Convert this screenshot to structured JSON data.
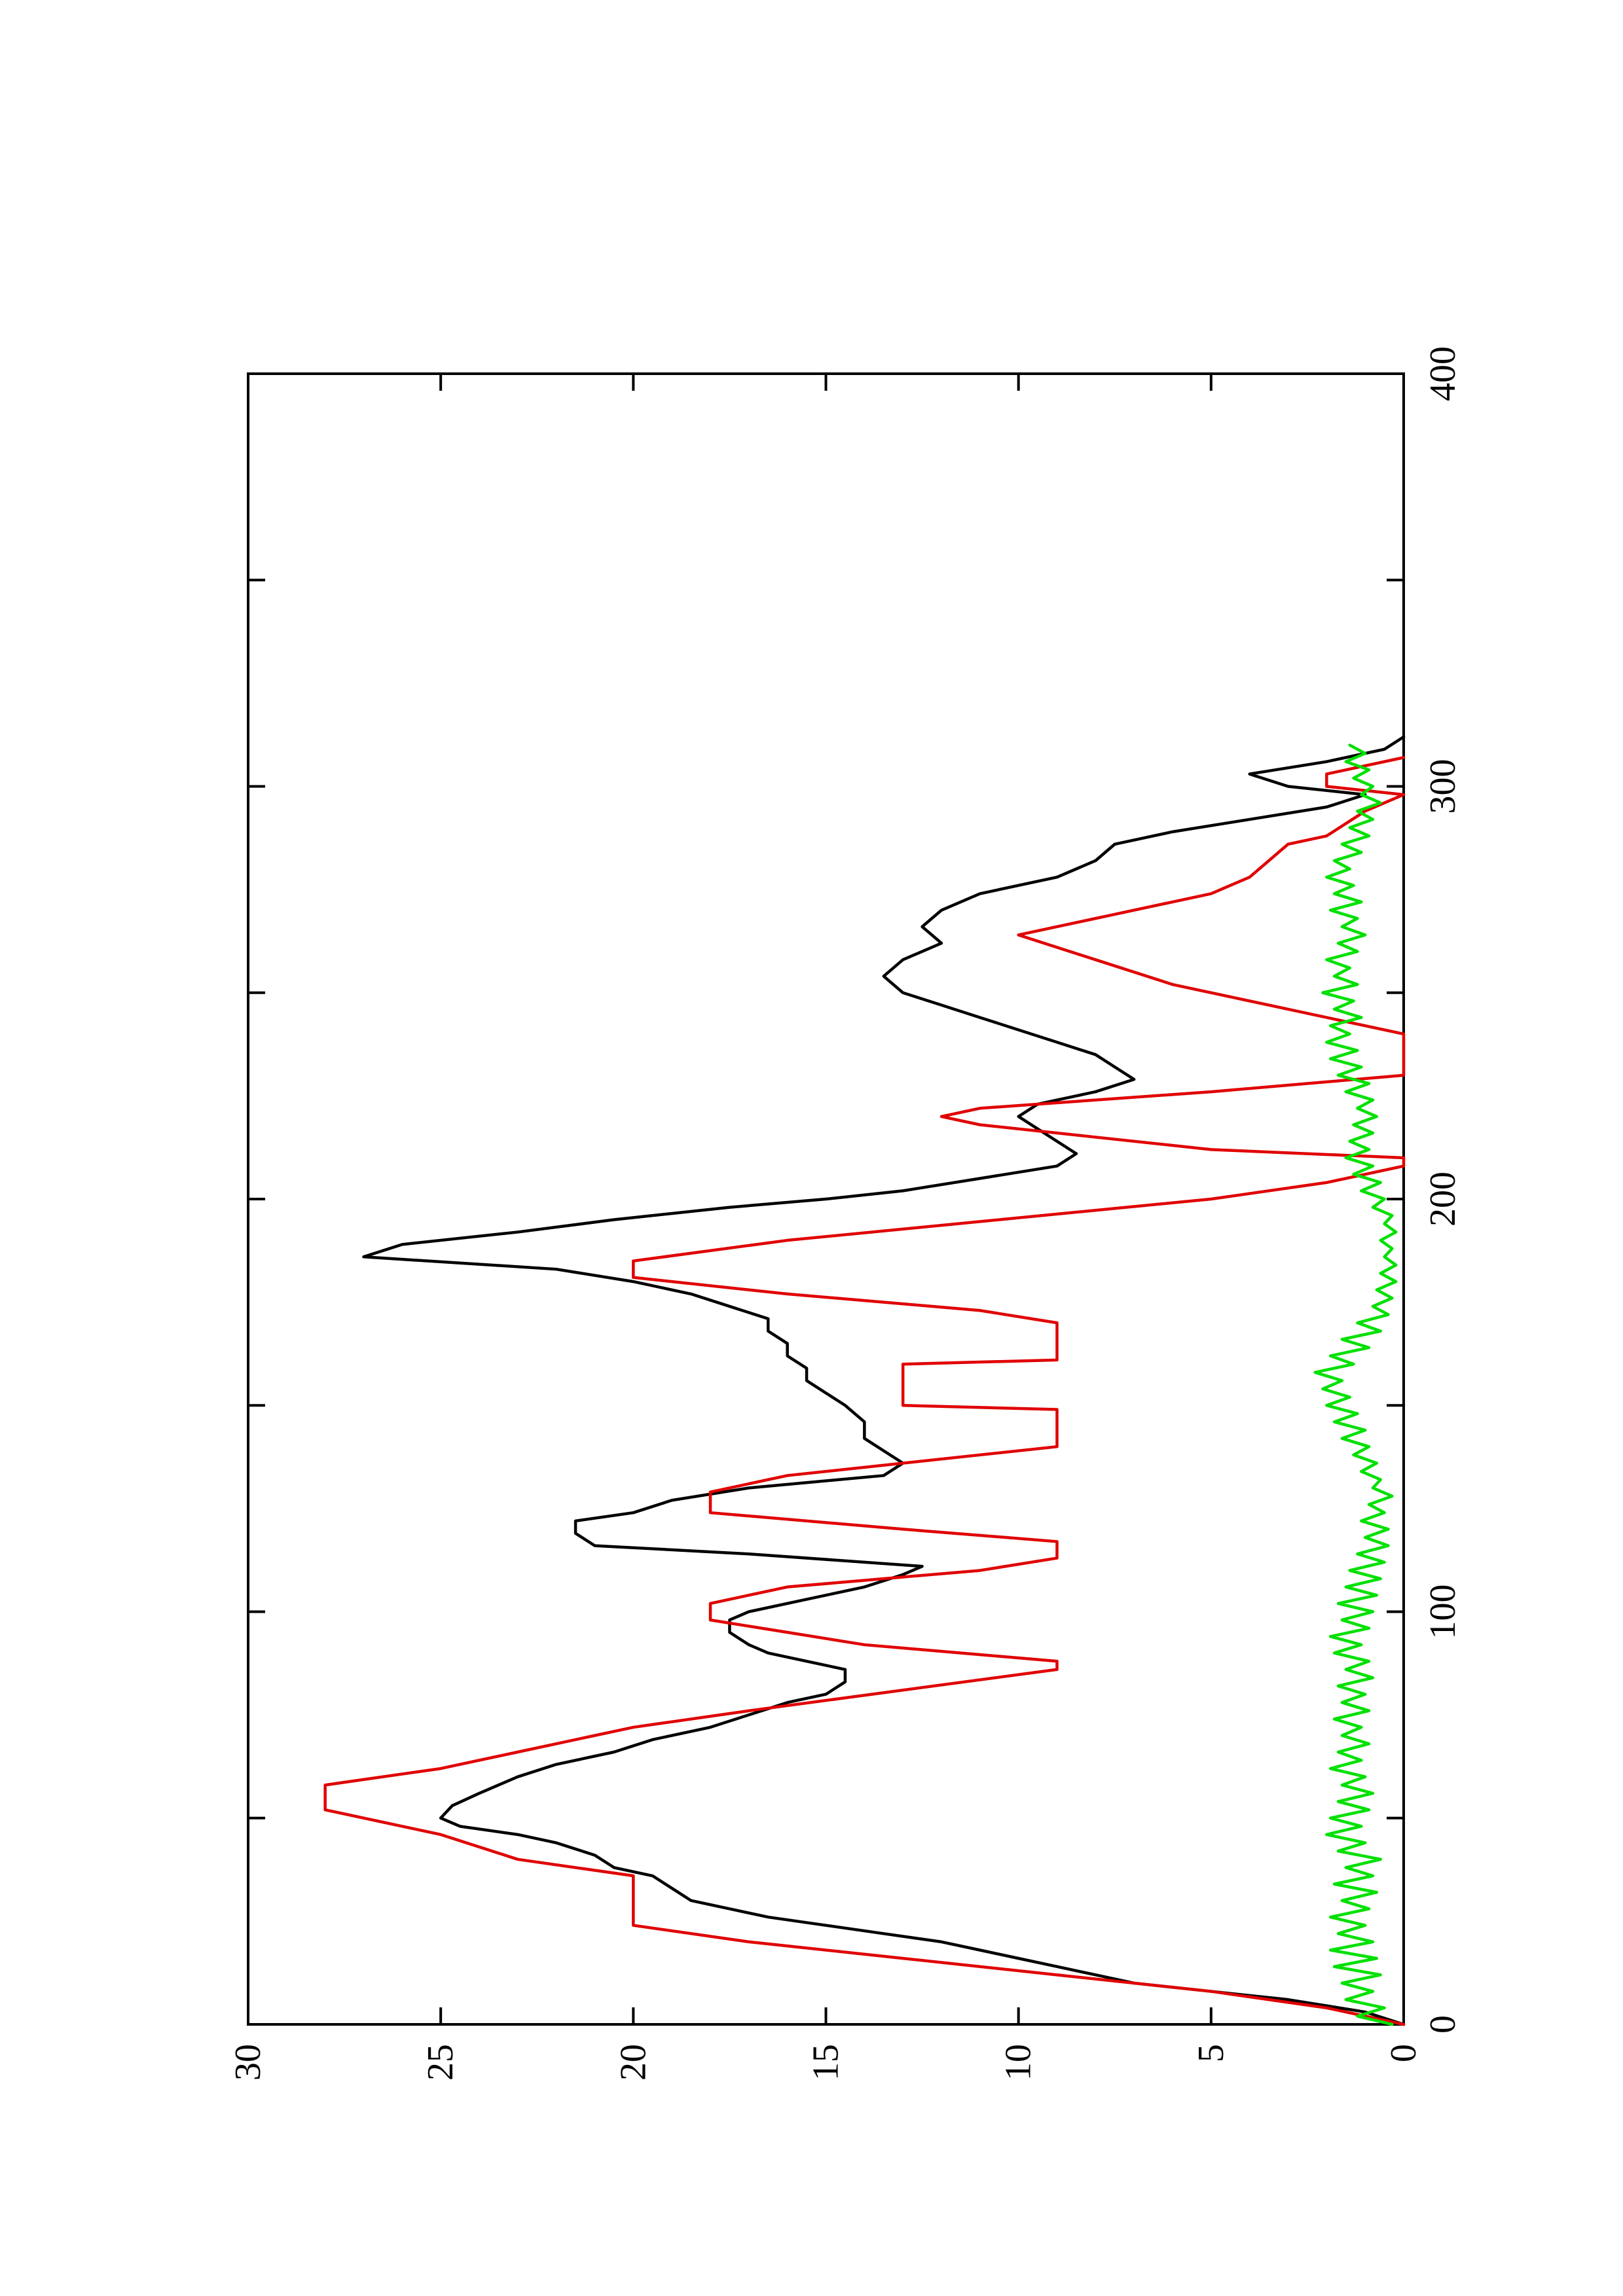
{
  "chart_data": {
    "type": "line",
    "orientation": "rotated-90-clockwise",
    "title": "",
    "xlabel": "",
    "ylabel": "",
    "xlim": [
      0,
      400
    ],
    "ylim": [
      0,
      30
    ],
    "x_ticks": [
      0,
      100,
      200,
      300,
      400
    ],
    "x_minor_ticks": [
      50,
      150,
      250,
      350
    ],
    "y_ticks": [
      0,
      5,
      10,
      15,
      20,
      25,
      30
    ],
    "x_tick_labels": [
      "0",
      "100",
      "200",
      "300",
      "400"
    ],
    "y_tick_labels": [
      "0",
      "5",
      "10",
      "15",
      "20",
      "25",
      "30"
    ],
    "grid": false,
    "legend": "none",
    "series": [
      {
        "color": "#000000",
        "points": [
          [
            0,
            0
          ],
          [
            3,
            1
          ],
          [
            6,
            3
          ],
          [
            8,
            5
          ],
          [
            10,
            7
          ],
          [
            12,
            8
          ],
          [
            14,
            9
          ],
          [
            16,
            10
          ],
          [
            18,
            11
          ],
          [
            20,
            12
          ],
          [
            22,
            13.5
          ],
          [
            24,
            15
          ],
          [
            26,
            16.5
          ],
          [
            28,
            17.5
          ],
          [
            30,
            18.5
          ],
          [
            33,
            19
          ],
          [
            36,
            19.5
          ],
          [
            38,
            20.5
          ],
          [
            41,
            21
          ],
          [
            44,
            22
          ],
          [
            46,
            23
          ],
          [
            48,
            24.5
          ],
          [
            50,
            25
          ],
          [
            53,
            24.7
          ],
          [
            56,
            24
          ],
          [
            60,
            23
          ],
          [
            63,
            22
          ],
          [
            66,
            20.5
          ],
          [
            69,
            19.5
          ],
          [
            72,
            18
          ],
          [
            75,
            17
          ],
          [
            78,
            16
          ],
          [
            80,
            15
          ],
          [
            83,
            14.5
          ],
          [
            86,
            14.5
          ],
          [
            88,
            15.5
          ],
          [
            90,
            16.5
          ],
          [
            92,
            17
          ],
          [
            95,
            17.5
          ],
          [
            98,
            17.5
          ],
          [
            100,
            17
          ],
          [
            103,
            15.5
          ],
          [
            106,
            14
          ],
          [
            109,
            13
          ],
          [
            111,
            12.5
          ],
          [
            114,
            17
          ],
          [
            116,
            21
          ],
          [
            119,
            21.5
          ],
          [
            122,
            21.5
          ],
          [
            124,
            20
          ],
          [
            127,
            19
          ],
          [
            130,
            17
          ],
          [
            133,
            13.5
          ],
          [
            136,
            13
          ],
          [
            139,
            13.5
          ],
          [
            142,
            14
          ],
          [
            146,
            14
          ],
          [
            150,
            14.5
          ],
          [
            153,
            15
          ],
          [
            156,
            15.5
          ],
          [
            159,
            15.5
          ],
          [
            162,
            16
          ],
          [
            165,
            16
          ],
          [
            168,
            16.5
          ],
          [
            171,
            16.5
          ],
          [
            174,
            17.5
          ],
          [
            177,
            18.5
          ],
          [
            180,
            20
          ],
          [
            183,
            22
          ],
          [
            186,
            27
          ],
          [
            189,
            26
          ],
          [
            192,
            23
          ],
          [
            195,
            20.5
          ],
          [
            198,
            17.5
          ],
          [
            200,
            15
          ],
          [
            202,
            13
          ],
          [
            205,
            11
          ],
          [
            208,
            9
          ],
          [
            211,
            8.5
          ],
          [
            214,
            9
          ],
          [
            217,
            9.5
          ],
          [
            220,
            10
          ],
          [
            223,
            9.5
          ],
          [
            226,
            8
          ],
          [
            229,
            7
          ],
          [
            232,
            7.5
          ],
          [
            235,
            8
          ],
          [
            238,
            9
          ],
          [
            241,
            10
          ],
          [
            244,
            11
          ],
          [
            247,
            12
          ],
          [
            250,
            13
          ],
          [
            254,
            13.5
          ],
          [
            258,
            13
          ],
          [
            262,
            12
          ],
          [
            266,
            12.5
          ],
          [
            270,
            12
          ],
          [
            274,
            11
          ],
          [
            278,
            9
          ],
          [
            282,
            8
          ],
          [
            286,
            7.5
          ],
          [
            289,
            6
          ],
          [
            292,
            4
          ],
          [
            295,
            2
          ],
          [
            298,
            1
          ],
          [
            300,
            3
          ],
          [
            303,
            4
          ],
          [
            306,
            2
          ],
          [
            309,
            0.5
          ],
          [
            312,
            0
          ]
        ]
      },
      {
        "color": "#e00000",
        "points": [
          [
            0,
            0
          ],
          [
            4,
            2
          ],
          [
            8,
            5
          ],
          [
            12,
            9
          ],
          [
            16,
            13
          ],
          [
            20,
            17
          ],
          [
            24,
            20
          ],
          [
            36,
            20
          ],
          [
            40,
            23
          ],
          [
            46,
            25
          ],
          [
            52,
            28
          ],
          [
            58,
            28
          ],
          [
            62,
            25
          ],
          [
            66,
            23
          ],
          [
            72,
            20
          ],
          [
            76,
            17
          ],
          [
            86,
            9
          ],
          [
            88,
            9
          ],
          [
            92,
            14
          ],
          [
            95,
            16
          ],
          [
            98,
            18
          ],
          [
            102,
            18
          ],
          [
            106,
            16
          ],
          [
            110,
            11
          ],
          [
            113,
            9
          ],
          [
            117,
            9
          ],
          [
            120,
            13
          ],
          [
            124,
            18
          ],
          [
            129,
            18
          ],
          [
            133,
            16
          ],
          [
            140,
            9
          ],
          [
            149,
            9
          ],
          [
            150,
            13
          ],
          [
            160,
            13
          ],
          [
            161,
            9
          ],
          [
            170,
            9
          ],
          [
            173,
            11
          ],
          [
            177,
            16
          ],
          [
            181,
            20
          ],
          [
            185,
            20
          ],
          [
            190,
            16
          ],
          [
            200,
            5
          ],
          [
            204,
            2
          ],
          [
            208,
            0
          ],
          [
            210,
            0
          ],
          [
            212,
            5
          ],
          [
            215,
            8
          ],
          [
            218,
            11
          ],
          [
            220,
            12
          ],
          [
            222,
            11
          ],
          [
            226,
            5
          ],
          [
            230,
            0
          ],
          [
            240,
            0
          ],
          [
            252,
            6
          ],
          [
            258,
            8
          ],
          [
            264,
            10
          ],
          [
            268,
            8
          ],
          [
            272,
            6
          ],
          [
            274,
            5
          ],
          [
            278,
            4
          ],
          [
            286,
            3
          ],
          [
            288,
            2
          ],
          [
            294,
            1
          ],
          [
            298,
            0
          ],
          [
            300,
            2
          ],
          [
            303,
            2
          ],
          [
            307,
            0
          ]
        ]
      },
      {
        "color": "#00e000",
        "points": [
          [
            0,
            0.3
          ],
          [
            2,
            1.2
          ],
          [
            4,
            0.5
          ],
          [
            6,
            1.5
          ],
          [
            8,
            0.8
          ],
          [
            10,
            1.6
          ],
          [
            12,
            0.6
          ],
          [
            14,
            1.8
          ],
          [
            16,
            0.7
          ],
          [
            18,
            1.9
          ],
          [
            20,
            0.8
          ],
          [
            22,
            1.7
          ],
          [
            24,
            1
          ],
          [
            26,
            1.9
          ],
          [
            28,
            0.9
          ],
          [
            30,
            1.6
          ],
          [
            32,
            0.7
          ],
          [
            34,
            1.8
          ],
          [
            36,
            0.8
          ],
          [
            38,
            1.5
          ],
          [
            40,
            0.6
          ],
          [
            42,
            1.7
          ],
          [
            44,
            1
          ],
          [
            46,
            2
          ],
          [
            48,
            1.1
          ],
          [
            50,
            1.9
          ],
          [
            52,
            0.9
          ],
          [
            54,
            1.7
          ],
          [
            56,
            0.8
          ],
          [
            58,
            1.6
          ],
          [
            60,
            1
          ],
          [
            62,
            1.9
          ],
          [
            64,
            1.1
          ],
          [
            66,
            1.7
          ],
          [
            68,
            0.9
          ],
          [
            70,
            1.6
          ],
          [
            72,
            1.1
          ],
          [
            74,
            1.8
          ],
          [
            76,
            0.9
          ],
          [
            78,
            1.6
          ],
          [
            80,
            1
          ],
          [
            82,
            1.7
          ],
          [
            84,
            0.8
          ],
          [
            86,
            1.5
          ],
          [
            88,
            0.9
          ],
          [
            90,
            1.8
          ],
          [
            92,
            1.1
          ],
          [
            94,
            1.9
          ],
          [
            96,
            0.9
          ],
          [
            98,
            1.6
          ],
          [
            100,
            0.8
          ],
          [
            102,
            1.7
          ],
          [
            104,
            0.7
          ],
          [
            106,
            1.5
          ],
          [
            108,
            0.6
          ],
          [
            110,
            1.4
          ],
          [
            112,
            0.5
          ],
          [
            114,
            1.2
          ],
          [
            116,
            0.4
          ],
          [
            118,
            1
          ],
          [
            120,
            0.4
          ],
          [
            122,
            1.1
          ],
          [
            124,
            0.5
          ],
          [
            126,
            0.9
          ],
          [
            128,
            0.3
          ],
          [
            130,
            0.8
          ],
          [
            132,
            0.6
          ],
          [
            134,
            1.1
          ],
          [
            136,
            0.7
          ],
          [
            138,
            1.3
          ],
          [
            140,
            0.9
          ],
          [
            142,
            1.6
          ],
          [
            144,
            1
          ],
          [
            146,
            1.8
          ],
          [
            148,
            1.2
          ],
          [
            150,
            2
          ],
          [
            152,
            1.4
          ],
          [
            154,
            2.1
          ],
          [
            156,
            1.6
          ],
          [
            158,
            2.3
          ],
          [
            160,
            1.3
          ],
          [
            162,
            1.9
          ],
          [
            164,
            0.9
          ],
          [
            166,
            1.6
          ],
          [
            168,
            0.6
          ],
          [
            170,
            1.2
          ],
          [
            172,
            0.4
          ],
          [
            174,
            0.8
          ],
          [
            176,
            0.3
          ],
          [
            178,
            0.7
          ],
          [
            180,
            0.2
          ],
          [
            182,
            0.6
          ],
          [
            184,
            0.2
          ],
          [
            186,
            0.5
          ],
          [
            188,
            0.3
          ],
          [
            190,
            0.6
          ],
          [
            192,
            0.2
          ],
          [
            194,
            0.5
          ],
          [
            196,
            0.3
          ],
          [
            198,
            0.8
          ],
          [
            200,
            0.5
          ],
          [
            202,
            1.1
          ],
          [
            204,
            0.6
          ],
          [
            206,
            1.3
          ],
          [
            208,
            0.8
          ],
          [
            210,
            1.5
          ],
          [
            212,
            0.9
          ],
          [
            214,
            1.4
          ],
          [
            216,
            0.8
          ],
          [
            218,
            1.3
          ],
          [
            220,
            0.7
          ],
          [
            222,
            1.2
          ],
          [
            224,
            0.8
          ],
          [
            226,
            1.5
          ],
          [
            228,
            0.9
          ],
          [
            230,
            1.7
          ],
          [
            232,
            1.1
          ],
          [
            234,
            1.9
          ],
          [
            236,
            1.2
          ],
          [
            238,
            2
          ],
          [
            240,
            1.4
          ],
          [
            242,
            1.9
          ],
          [
            244,
            1.1
          ],
          [
            246,
            1.8
          ],
          [
            248,
            1.3
          ],
          [
            250,
            2.1
          ],
          [
            252,
            1.2
          ],
          [
            254,
            1.8
          ],
          [
            256,
            1.4
          ],
          [
            258,
            2
          ],
          [
            260,
            1.2
          ],
          [
            262,
            1.7
          ],
          [
            264,
            1
          ],
          [
            266,
            1.6
          ],
          [
            268,
            1.2
          ],
          [
            270,
            1.9
          ],
          [
            272,
            1.1
          ],
          [
            274,
            1.8
          ],
          [
            276,
            1.3
          ],
          [
            278,
            2
          ],
          [
            280,
            1.4
          ],
          [
            282,
            1.8
          ],
          [
            284,
            1.1
          ],
          [
            286,
            1.6
          ],
          [
            288,
            0.9
          ],
          [
            290,
            1.4
          ],
          [
            292,
            0.8
          ],
          [
            294,
            1.2
          ],
          [
            296,
            0.6
          ],
          [
            298,
            1.1
          ],
          [
            300,
            0.8
          ],
          [
            302,
            1.3
          ],
          [
            304,
            0.9
          ],
          [
            306,
            1.5
          ],
          [
            308,
            1
          ],
          [
            310,
            1.4
          ]
        ]
      }
    ]
  }
}
